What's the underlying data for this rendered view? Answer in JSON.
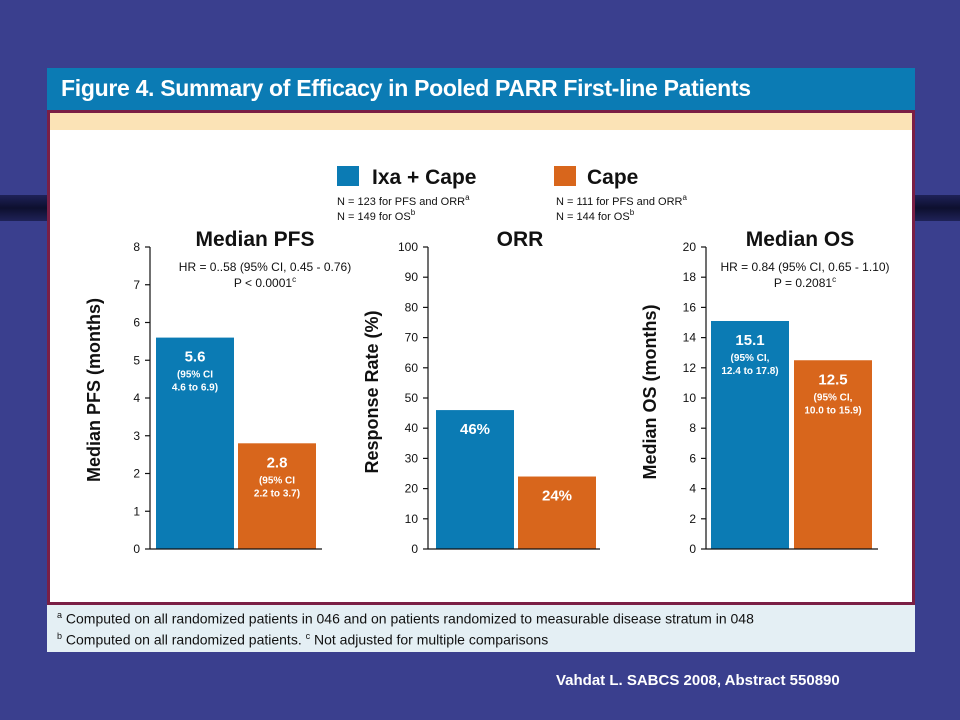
{
  "slide_title": "Figure 4. Summary of Efficacy in Pooled PARR First-line Patients",
  "citation": "Vahdat L. SABCS 2008, Abstract 550890",
  "colors": {
    "ixa": "#0b7bb4",
    "cape": "#d8661c",
    "background": "#3a3f8e",
    "accent": "#7a1f45"
  },
  "legend": [
    {
      "label": "Ixa + Cape",
      "notes": [
        "N = 123 for PFS and ORR",
        "N = 149 for OS"
      ],
      "note_sups": [
        "a",
        "b"
      ]
    },
    {
      "label": "Cape",
      "notes": [
        "N = 111 for PFS and ORR",
        "N = 144 for OS"
      ],
      "note_sups": [
        "a",
        "b"
      ]
    }
  ],
  "footnotes": [
    {
      "sup": "a",
      "text": "Computed on all randomized patients in 046 and on patients randomized to measurable disease stratum in 048"
    },
    {
      "sup": "b",
      "text": "Computed on all randomized patients.",
      "sup2": "c",
      "text2": "Not adjusted for multiple comparisons"
    }
  ],
  "chart_data": [
    {
      "type": "bar",
      "title": "Median PFS",
      "ylabel": "Median PFS (months)",
      "ylim": [
        0,
        8
      ],
      "yticks": [
        0,
        1,
        2,
        3,
        4,
        5,
        6,
        7,
        8
      ],
      "annotation": [
        "HR = 0..58 (95% CI, 0.45 - 0.76)",
        "P  < 0.0001"
      ],
      "annotation_sup": "c",
      "series": [
        {
          "name": "Ixa + Cape",
          "values": [
            5.6
          ],
          "label": "5.6",
          "sublabel": [
            "(95% CI",
            "4.6 to 6.9)"
          ]
        },
        {
          "name": "Cape",
          "values": [
            2.8
          ],
          "label": "2.8",
          "sublabel": [
            "(95% CI",
            "2.2 to 3.7)"
          ]
        }
      ]
    },
    {
      "type": "bar",
      "title": "ORR",
      "ylabel": "Response Rate (%)",
      "ylim": [
        0,
        100
      ],
      "yticks": [
        0,
        10,
        20,
        30,
        40,
        50,
        60,
        70,
        80,
        90,
        100
      ],
      "series": [
        {
          "name": "Ixa + Cape",
          "values": [
            46
          ],
          "label": "46%"
        },
        {
          "name": "Cape",
          "values": [
            24
          ],
          "label": "24%"
        }
      ]
    },
    {
      "type": "bar",
      "title": "Median OS",
      "ylabel": "Median OS (months)",
      "ylim": [
        0,
        20
      ],
      "yticks": [
        0,
        2,
        4,
        6,
        8,
        10,
        12,
        14,
        16,
        18,
        20
      ],
      "annotation": [
        "HR = 0.84 (95% CI, 0.65 - 1.10)",
        "P = 0.2081"
      ],
      "annotation_sup": "c",
      "series": [
        {
          "name": "Ixa + Cape",
          "values": [
            15.1
          ],
          "label": "15.1",
          "sublabel": [
            "(95% CI,",
            "12.4 to 17.8)"
          ]
        },
        {
          "name": "Cape",
          "values": [
            12.5
          ],
          "label": "12.5",
          "sublabel": [
            "(95% CI,",
            "10.0 to 15.9)"
          ]
        }
      ]
    }
  ]
}
